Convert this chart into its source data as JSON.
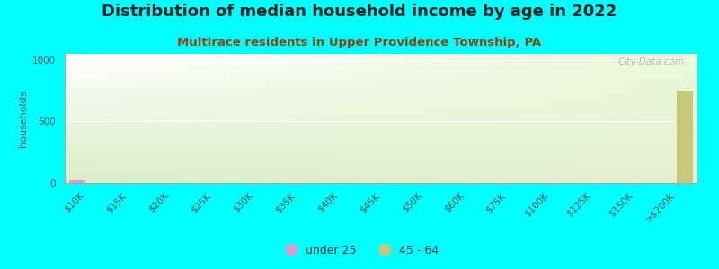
{
  "title": "Distribution of median household income by age in 2022",
  "subtitle": "Multirace residents in Upper Providence Township, PA",
  "xlabel": "",
  "ylabel": "households",
  "background_color": "#00FFFF",
  "ylim": [
    0,
    1050
  ],
  "yticks": [
    0,
    500,
    1000
  ],
  "categories": [
    "$10K",
    "$15K",
    "$20K",
    "$25K",
    "$30K",
    "$35K",
    "$40K",
    "$45K",
    "$50K",
    "$60K",
    "$75K",
    "$100K",
    "$125K",
    "$150K",
    ">$200K"
  ],
  "series": [
    {
      "label": "under 25",
      "color": "#d4a0d0",
      "values": [
        25,
        0,
        0,
        0,
        0,
        0,
        0,
        0,
        0,
        0,
        0,
        0,
        0,
        0,
        0
      ]
    },
    {
      "label": "45 - 64",
      "color": "#c8c87a",
      "values": [
        0,
        0,
        0,
        0,
        0,
        0,
        0,
        0,
        0,
        0,
        0,
        0,
        0,
        0,
        750
      ]
    }
  ],
  "bar_width": 0.4,
  "title_fontsize": 13,
  "subtitle_fontsize": 9.5,
  "ylabel_fontsize": 8,
  "tick_fontsize": 7.5,
  "legend_fontsize": 9,
  "watermark": "City-Data.com",
  "title_color": "#222222",
  "subtitle_color": "#8B4513",
  "tick_color": "#555555",
  "ylabel_color": "#555555",
  "grid_color": "#ffffff",
  "spine_color": "#aaaaaa",
  "gradient_tl": [
    1.0,
    1.0,
    1.0
  ],
  "gradient_tr": [
    0.92,
    0.97,
    0.85
  ],
  "gradient_bl": [
    0.85,
    0.93,
    0.78
  ],
  "gradient_br": [
    0.9,
    0.94,
    0.82
  ]
}
